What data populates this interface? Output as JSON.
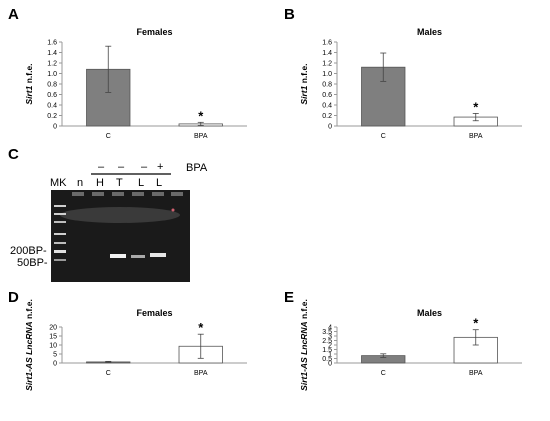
{
  "colors": {
    "filled": "#7f7f7f",
    "open": "#ffffff",
    "gel_bg": "#1a1a1a",
    "band": "#f2f2f2"
  },
  "chart_data": [
    {
      "panel": "A",
      "type": "bar",
      "title": "Females",
      "ylabel_italic": "Sirt1",
      "ylabel_rest": " n.f.e.",
      "categories": [
        "C",
        "BPA"
      ],
      "values": [
        1.08,
        0.04
      ],
      "errors": [
        0.44,
        0.03
      ],
      "fills": [
        "filled",
        "open"
      ],
      "significance": [
        "",
        "*"
      ],
      "ylim": [
        0,
        1.6
      ],
      "yticks": [
        0,
        0.2,
        0.4,
        0.6,
        0.8,
        1.0,
        1.2,
        1.4,
        1.6
      ],
      "ytick_labels": [
        "0",
        "0.2",
        "0.4",
        "0.6",
        "0.8",
        "1.0",
        "1.2",
        "1.4",
        "1.6"
      ]
    },
    {
      "panel": "B",
      "type": "bar",
      "title": "Males",
      "ylabel_italic": "Sirt1",
      "ylabel_rest": " n.f.e.",
      "categories": [
        "C",
        "BPA"
      ],
      "values": [
        1.12,
        0.17
      ],
      "errors": [
        0.27,
        0.07
      ],
      "fills": [
        "filled",
        "open"
      ],
      "significance": [
        "",
        "*"
      ],
      "ylim": [
        0,
        1.6
      ],
      "yticks": [
        0,
        0.2,
        0.4,
        0.6,
        0.8,
        1.0,
        1.2,
        1.4,
        1.6
      ],
      "ytick_labels": [
        "0",
        "0.2",
        "0.4",
        "0.6",
        "0.8",
        "1.0",
        "1.2",
        "1.4",
        "1.6"
      ]
    },
    {
      "panel": "D",
      "type": "bar",
      "title": "Females",
      "ylabel_italic": "Sirt1-AS LncRNA",
      "ylabel_rest": " n.f.e.",
      "categories": [
        "C",
        "BPA"
      ],
      "values": [
        0.6,
        9.3
      ],
      "errors": [
        0.3,
        6.7
      ],
      "fills": [
        "filled",
        "open"
      ],
      "significance": [
        "",
        "*"
      ],
      "ylim": [
        0,
        20
      ],
      "yticks": [
        0,
        5,
        10,
        15,
        20
      ],
      "ytick_labels": [
        "0",
        "5",
        "10",
        "15",
        "20"
      ]
    },
    {
      "panel": "E",
      "type": "bar",
      "title": "Males",
      "ylabel_italic": "Sirt1-AS LncRNA",
      "ylabel_rest": " n.f.e.",
      "categories": [
        "C",
        "BPA"
      ],
      "values": [
        0.82,
        2.85
      ],
      "errors": [
        0.2,
        0.85
      ],
      "fills": [
        "filled",
        "open"
      ],
      "significance": [
        "",
        "*"
      ],
      "ylim": [
        0,
        4
      ],
      "yticks": [
        0,
        0.5,
        1,
        1.5,
        2,
        2.5,
        3,
        3.5,
        4
      ],
      "ytick_labels": [
        "0",
        "0.5",
        "1",
        "1.5",
        "2",
        "2.5",
        "3",
        "3.5",
        "4"
      ]
    }
  ],
  "gel": {
    "panel": "C",
    "bpa_label": "BPA",
    "bpa_signs": [
      "–",
      "–",
      "–",
      "+"
    ],
    "lane_labels": [
      "MK",
      "n",
      "H",
      "T",
      "L",
      "L"
    ],
    "markers": [
      "200BP-",
      "50BP-"
    ]
  }
}
